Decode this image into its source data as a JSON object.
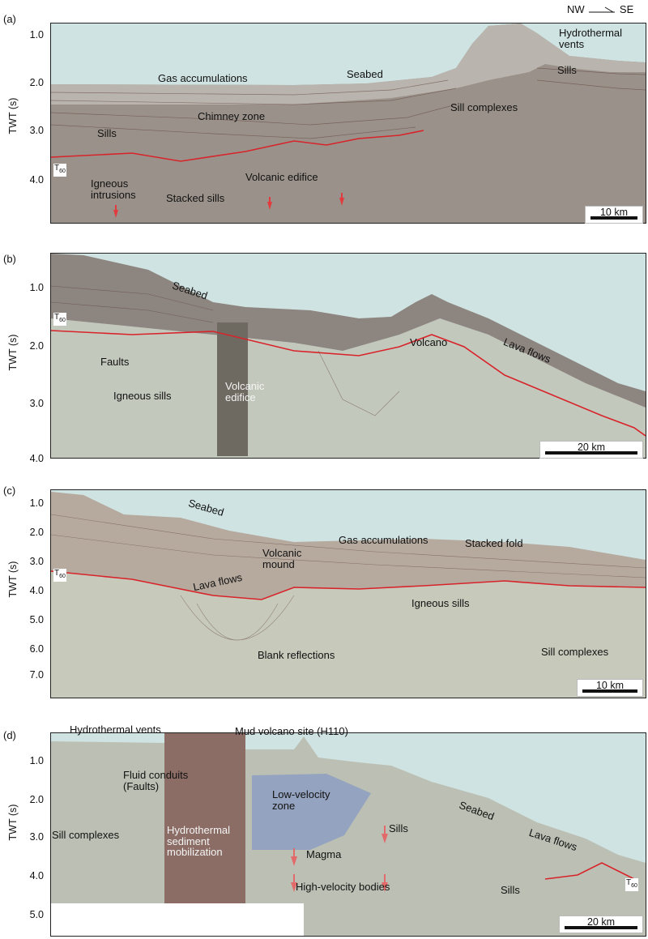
{
  "compass": {
    "left": "NW",
    "right": "SE"
  },
  "axis_label": "TWT (s)",
  "panels": [
    {
      "letter": "(a)",
      "ticks": [
        "1.0",
        "2.0",
        "3.0",
        "4.0"
      ],
      "scale": "10 km",
      "horizon": "T",
      "horizon_sub": "60",
      "labels": {
        "gas": "Gas accumulations",
        "seabed": "Seabed",
        "chimney": "Chimney zone",
        "sills_left": "Sills",
        "sill_complexes": "Sill complexes",
        "hydro": "Hydrothermal\nvents",
        "sills_right": "Sills",
        "igneous": "Igneous\nintrusions",
        "stacked": "Stacked sills",
        "edifice": "Volcanic edifice"
      }
    },
    {
      "letter": "(b)",
      "ticks": [
        "1.0",
        "2.0",
        "3.0",
        "4.0"
      ],
      "scale": "20 km",
      "horizon": "T",
      "horizon_sub": "60",
      "labels": {
        "seabed": "Seabed",
        "faults": "Faults",
        "sills": "Igneous sills",
        "edifice": "Volcanic\nedifice",
        "volcano": "Volcano",
        "lava": "Lava flows"
      }
    },
    {
      "letter": "(c)",
      "ticks": [
        "1.0",
        "2.0",
        "3.0",
        "4.0",
        "5.0",
        "6.0",
        "7.0"
      ],
      "scale": "10 km",
      "horizon": "T",
      "horizon_sub": "60",
      "labels": {
        "seabed": "Seabed",
        "gas": "Gas accumulations",
        "fold": "Stacked fold",
        "mound": "Volcanic\nmound",
        "lava": "Lava flows",
        "sills": "Igneous sills",
        "blank": "Blank reflections",
        "complexes": "Sill complexes"
      }
    },
    {
      "letter": "(d)",
      "ticks": [
        "1.0",
        "2.0",
        "3.0",
        "4.0",
        "5.0"
      ],
      "scale": "20 km",
      "horizon": "T",
      "horizon_sub": "60",
      "labels": {
        "vents": "Hydrothermal vents",
        "mud": "Mud volcano site (H110)",
        "conduits": "Fluid conduits\n(Faults)",
        "complexes": "Sill complexes",
        "mobil": "Hydrothermal\nsediment\nmobilization",
        "lowvel": "Low-velocity\nzone",
        "magma": "Magma",
        "highvel": "High-velocity bodies",
        "sills_mid": "Sills",
        "seabed": "Seabed",
        "lava": "Lava flows",
        "sills_bot": "Sills"
      }
    }
  ]
}
